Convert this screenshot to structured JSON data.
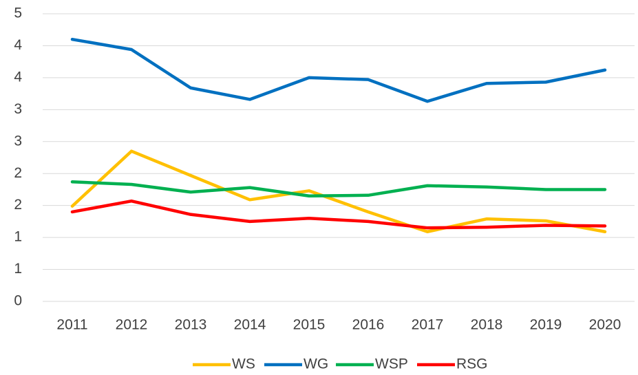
{
  "chart_data": {
    "type": "line",
    "categories": [
      "2011",
      "2012",
      "2013",
      "2014",
      "2015",
      "2016",
      "2017",
      "2018",
      "2019",
      "2020"
    ],
    "series": [
      {
        "name": "WS",
        "color": "#ffc000",
        "values": [
          1.49,
          2.35,
          1.97,
          1.59,
          1.73,
          1.4,
          1.09,
          1.29,
          1.26,
          1.09
        ]
      },
      {
        "name": "WG",
        "color": "#0070c0",
        "values": [
          4.1,
          3.94,
          3.34,
          3.16,
          3.5,
          3.47,
          3.13,
          3.41,
          3.43,
          3.62
        ]
      },
      {
        "name": "WSP",
        "color": "#00b050",
        "values": [
          1.87,
          1.83,
          1.71,
          1.78,
          1.65,
          1.66,
          1.81,
          1.79,
          1.75,
          1.75
        ]
      },
      {
        "name": "RSG",
        "color": "#ff0000",
        "values": [
          1.4,
          1.57,
          1.36,
          1.25,
          1.3,
          1.25,
          1.15,
          1.16,
          1.19,
          1.18
        ]
      }
    ],
    "ylim": [
      0,
      4.5
    ],
    "yticks": [
      0,
      {
        "value": 0.5,
        "label": "1"
      },
      1,
      {
        "value": 1.5,
        "label": "2"
      },
      2,
      {
        "value": 2.5,
        "label": "3"
      },
      3,
      {
        "value": 3.5,
        "label": "4"
      },
      4,
      {
        "value": 4.5,
        "label": "5"
      }
    ],
    "grid": true,
    "legend": "bottom"
  }
}
